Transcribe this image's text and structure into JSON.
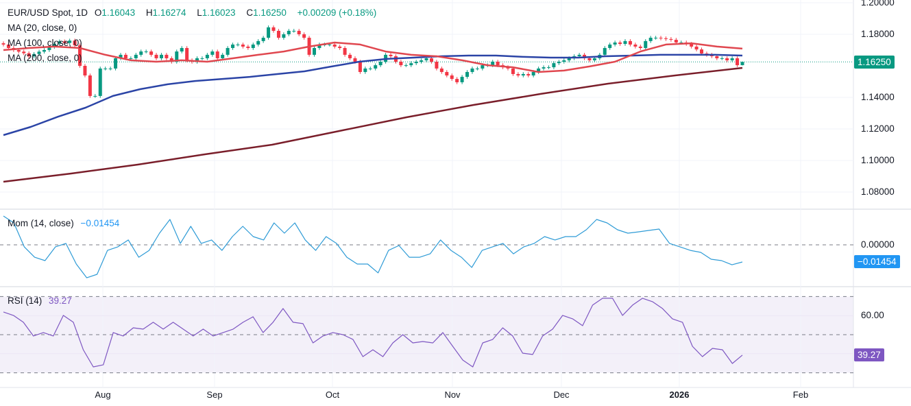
{
  "header": {
    "symbol": "EUR/USD Spot, 1D",
    "open_label": "O",
    "open": "1.16043",
    "high_label": "H",
    "high": "1.16274",
    "low_label": "L",
    "low": "1.16023",
    "close_label": "C",
    "close": "1.16250",
    "change": "+0.00209 (+0.18%)"
  },
  "overlays": {
    "ma20_label": "MA (20, close, 0)",
    "ma100_label": "MA (100, close, 0)",
    "ma200_label": "MA (200, close, 0)"
  },
  "mom_legend": {
    "label": "Mom (14, close)",
    "value": "−0.01454"
  },
  "rsi_legend": {
    "label": "RSI (14)",
    "value": "39.27"
  },
  "badges": {
    "price": "1.16250",
    "mom": "−0.01454",
    "rsi": "39.27"
  },
  "colors": {
    "up": "#089981",
    "down": "#F23645",
    "ma20": "#E0474F",
    "ma100": "#2B44A6",
    "ma200": "#7A1E2A",
    "mom": "#2E9BD6",
    "rsi": "#7E57C2",
    "price_badge": "#089981",
    "mom_badge": "#2196F3",
    "rsi_badge": "#7E57C2"
  },
  "chart_data": [
    {
      "type": "candlestick",
      "title": "EUR/USD Spot, 1D",
      "ylim": [
        1.07,
        1.2
      ],
      "y_ticks": [
        "1.20000",
        "1.18000",
        "1.14000",
        "1.12000",
        "1.10000",
        "1.08000"
      ],
      "x_ticks": [
        "Aug",
        "Sep",
        "Oct",
        "Nov",
        "Dec",
        "2026",
        "Feb"
      ],
      "last_bar": {
        "open": 1.16043,
        "high": 1.16274,
        "low": 1.16023,
        "close": 1.1625
      },
      "closes": [
        1.1735,
        1.1713,
        1.17,
        1.169,
        1.168,
        1.166,
        1.1675,
        1.169,
        1.17,
        1.172,
        1.174,
        1.1755,
        1.1745,
        1.176,
        1.173,
        1.16,
        1.1539,
        1.1409,
        1.1409,
        1.1583,
        1.1583,
        1.1583,
        1.1648,
        1.167,
        1.1648,
        1.1648,
        1.167,
        1.1691,
        1.1691,
        1.167,
        1.1648,
        1.167,
        1.1648,
        1.1626,
        1.1691,
        1.1713,
        1.1635,
        1.1626,
        1.1648,
        1.1648,
        1.167,
        1.1691,
        1.1648,
        1.167,
        1.1713,
        1.1735,
        1.1735,
        1.1722,
        1.1713,
        1.1735,
        1.1757,
        1.1778,
        1.1844,
        1.1822,
        1.1778,
        1.18,
        1.1822,
        1.1822,
        1.18,
        1.1778,
        1.167,
        1.1713,
        1.1735,
        1.1735,
        1.1735,
        1.1722,
        1.1713,
        1.167,
        1.1648,
        1.1626,
        1.1561,
        1.1583,
        1.1583,
        1.1604,
        1.1626,
        1.167,
        1.1661,
        1.1626,
        1.1604,
        1.1604,
        1.1617,
        1.1626,
        1.1635,
        1.1648,
        1.1626,
        1.1583,
        1.1561,
        1.1539,
        1.1517,
        1.1496,
        1.153,
        1.1561,
        1.1583,
        1.1583,
        1.1604,
        1.1604,
        1.1626,
        1.1604,
        1.1591,
        1.1583,
        1.1548,
        1.1539,
        1.1548,
        1.1539,
        1.1561,
        1.1583,
        1.1591,
        1.1591,
        1.1617,
        1.1626,
        1.1635,
        1.1648,
        1.1661,
        1.167,
        1.1648,
        1.1635,
        1.1648,
        1.167,
        1.1713,
        1.1735,
        1.1748,
        1.1739,
        1.1757,
        1.1735,
        1.1722,
        1.1713,
        1.1757,
        1.1778,
        1.1778,
        1.1774,
        1.177,
        1.1765,
        1.1748,
        1.1748,
        1.1739,
        1.1722,
        1.1704,
        1.1678,
        1.167,
        1.1661,
        1.1648,
        1.1648,
        1.1635,
        1.1648,
        1.1604,
        1.1625
      ],
      "series": [
        {
          "name": "MA (20, close, 0)",
          "values": [
            1.17,
            1.1713,
            1.1722,
            1.1713,
            1.167,
            1.1635,
            1.1626,
            1.1635,
            1.1626,
            1.1648,
            1.167,
            1.1691,
            1.1722,
            1.1748,
            1.1735,
            1.1691,
            1.167,
            1.1661,
            1.1635,
            1.1604,
            1.1591,
            1.1561,
            1.157,
            1.1596,
            1.1626,
            1.1691,
            1.1735,
            1.1743,
            1.1722,
            1.1709
          ]
        },
        {
          "name": "MA (100, close, 0)",
          "values": [
            1.1161,
            1.1213,
            1.1278,
            1.1335,
            1.1409,
            1.1452,
            1.1483,
            1.1504,
            1.1517,
            1.153,
            1.1548,
            1.1565,
            1.1596,
            1.1626,
            1.1644,
            1.1652,
            1.1661,
            1.1665,
            1.1665,
            1.1657,
            1.1652,
            1.1652,
            1.1661,
            1.1665,
            1.167,
            1.167,
            1.167,
            1.1665
          ]
        },
        {
          "name": "MA (200, close, 0)",
          "values": [
            1.0865,
            1.0917,
            1.0974,
            1.1039,
            1.11,
            1.1187,
            1.1274,
            1.1352,
            1.1422,
            1.1487,
            1.1539,
            1.1587
          ]
        }
      ]
    },
    {
      "type": "line",
      "title": "Mom (14, close)",
      "y_ticks": [
        "0.00000"
      ],
      "series": [
        {
          "name": "Mom (14, close)",
          "values": [
            0.0244,
            0.0186,
            -0.0017,
            -0.0105,
            -0.0134,
            -0.0017,
            0.0012,
            -0.0163,
            -0.0279,
            -0.025,
            -0.0047,
            -0.0017,
            0.0041,
            -0.0105,
            -0.0047,
            0.0099,
            0.0215,
            0.0012,
            0.0157,
            0.0012,
            0.0041,
            -0.0047,
            0.007,
            0.0157,
            0.007,
            0.0041,
            0.0186,
            0.0099,
            0.0186,
            0.0041,
            -0.0047,
            0.007,
            0.0012,
            -0.0105,
            -0.0163,
            -0.0163,
            -0.0238,
            -0.0047,
            -0.0006,
            -0.0105,
            -0.0105,
            -0.0076,
            0.0041,
            -0.0047,
            -0.0105,
            -0.0192,
            -0.0047,
            -0.0017,
            0.0012,
            -0.0076,
            -0.0017,
            0.0012,
            0.007,
            0.0041,
            0.007,
            0.007,
            0.0128,
            0.0215,
            0.0186,
            0.0128,
            0.0099,
            0.011,
            0.0122,
            0.0134,
            0.0012,
            -0.0017,
            -0.0047,
            -0.0064,
            -0.0122,
            -0.0134,
            -0.0169,
            -0.01454
          ]
        }
      ]
    },
    {
      "type": "line",
      "title": "RSI (14)",
      "y_ticks": [
        "60.00"
      ],
      "band": [
        30,
        70
      ],
      "series": [
        {
          "name": "RSI (14)",
          "values": [
            61.9,
            60.1,
            56.5,
            49.3,
            51.1,
            49.3,
            60.1,
            56.5,
            42.1,
            33.1,
            34.2,
            51.1,
            49.3,
            53.6,
            52.9,
            56.5,
            52.9,
            56.5,
            52.9,
            49.3,
            52.9,
            49.3,
            51.1,
            52.9,
            56.5,
            59.4,
            51.1,
            56.5,
            63.7,
            56.5,
            55.8,
            45.7,
            49.3,
            51.1,
            50.0,
            47.5,
            38.5,
            42.1,
            38.5,
            45.7,
            50.0,
            45.7,
            46.4,
            45.7,
            51.1,
            43.9,
            36.7,
            33.1,
            45.7,
            47.5,
            53.6,
            49.3,
            40.3,
            39.6,
            49.3,
            52.9,
            60.1,
            58.3,
            54.7,
            65.5,
            69.1,
            69.1,
            60.1,
            65.5,
            69.1,
            67.3,
            63.7,
            58.3,
            56.5,
            43.9,
            38.5,
            42.8,
            42.1,
            34.9,
            39.27
          ]
        }
      ]
    }
  ]
}
